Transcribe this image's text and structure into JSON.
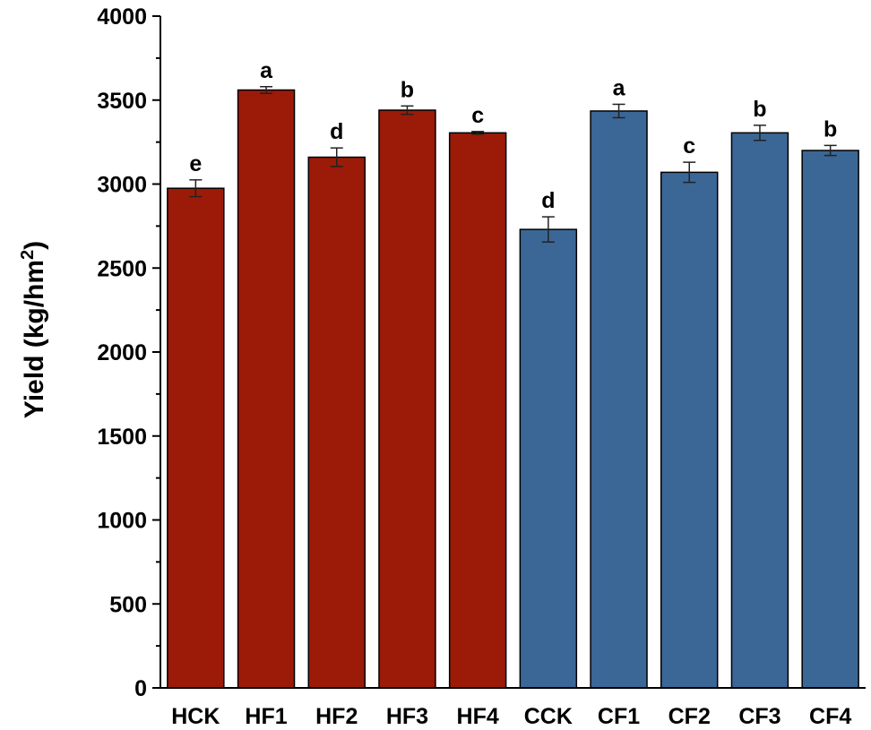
{
  "chart_data": {
    "type": "bar",
    "ylabel": "Yield (kg/hm2)",
    "ylabel_main": "Yield (kg/hm",
    "ylabel_sup": "2",
    "ylabel_close": ")",
    "ylim": [
      0,
      4000
    ],
    "yticks": [
      0,
      500,
      1000,
      1500,
      2000,
      2500,
      3000,
      3500,
      4000
    ],
    "ytick_labels": [
      "0",
      "500",
      "1000",
      "1500",
      "2000",
      "2500",
      "3000",
      "3500",
      "4000"
    ],
    "grid": false,
    "categories": [
      "HCK",
      "HF1",
      "HF2",
      "HF3",
      "HF4",
      "CCK",
      "CF1",
      "CF2",
      "CF3",
      "CF4"
    ],
    "values": [
      2975,
      3560,
      3160,
      3440,
      3305,
      2730,
      3435,
      3070,
      3305,
      3200
    ],
    "errors": [
      50,
      20,
      55,
      25,
      8,
      75,
      40,
      60,
      45,
      30
    ],
    "significance": [
      "e",
      "a",
      "d",
      "b",
      "c",
      "d",
      "a",
      "c",
      "b",
      "b"
    ],
    "colors": [
      "#9b1b08",
      "#9b1b08",
      "#9b1b08",
      "#9b1b08",
      "#9b1b08",
      "#3b6796",
      "#3b6796",
      "#3b6796",
      "#3b6796",
      "#3b6796"
    ]
  }
}
